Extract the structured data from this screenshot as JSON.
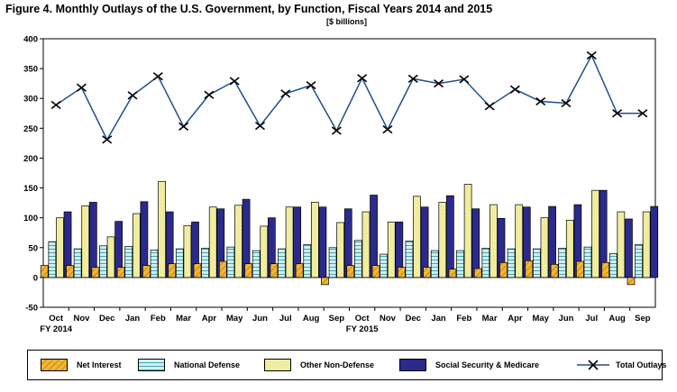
{
  "title": "Figure 4. Monthly Outlays of the U.S. Government, by Function,  Fiscal Years 2014 and 2015",
  "subtitle": "[$ billions]",
  "legend": {
    "net_interest": "Net Interest",
    "national_defense": "National Defense",
    "other_non_defense": "Other Non-Defense",
    "social_security_medicare": "Social Security & Medicare",
    "total_outlays": "Total Outlays"
  },
  "colors": {
    "net_interest": "#f2b632",
    "national_defense": "#cdeff2",
    "other_non_defense": "#f4f1a8",
    "social_security_medicare": "#2b2a8c",
    "total_outlays": "#1f4e8c"
  },
  "chart_data": {
    "type": "bar",
    "categories": [
      "Oct",
      "Nov",
      "Dec",
      "Jan",
      "Feb",
      "Mar",
      "Apr",
      "May",
      "Jun",
      "Jul",
      "Aug",
      "Sep",
      "Oct",
      "Nov",
      "Dec",
      "Jan",
      "Feb",
      "Mar",
      "Apr",
      "May",
      "Jun",
      "Jul",
      "Aug",
      "Sep"
    ],
    "fiscal_year_labels": [
      {
        "index": 0,
        "label": "FY 2014"
      },
      {
        "index": 12,
        "label": "FY 2015"
      }
    ],
    "ylim": [
      -50,
      400
    ],
    "yticks": [
      -50,
      0,
      50,
      100,
      150,
      200,
      250,
      300,
      350,
      400
    ],
    "grid": false,
    "legend_position": "bottom",
    "series": [
      {
        "name": "Net Interest",
        "kind": "bar",
        "values": [
          20,
          20,
          17,
          17,
          20,
          23,
          23,
          27,
          23,
          23,
          23,
          -12,
          20,
          20,
          17,
          17,
          14,
          15,
          25,
          28,
          22,
          27,
          25,
          -12
        ]
      },
      {
        "name": "National Defense",
        "kind": "bar",
        "values": [
          60,
          48,
          53,
          52,
          46,
          48,
          49,
          51,
          45,
          48,
          55,
          50,
          62,
          39,
          61,
          45,
          45,
          49,
          48,
          48,
          49,
          51,
          40,
          55
        ]
      },
      {
        "name": "Other Non-Defense",
        "kind": "bar",
        "values": [
          100,
          120,
          68,
          107,
          161,
          87,
          118,
          121,
          86,
          118,
          126,
          92,
          110,
          93,
          136,
          126,
          156,
          122,
          122,
          100,
          96,
          146,
          110,
          110
        ]
      },
      {
        "name": "Social Security & Medicare",
        "kind": "bar",
        "values": [
          110,
          126,
          94,
          127,
          110,
          93,
          115,
          131,
          100,
          118,
          118,
          115,
          138,
          93,
          118,
          137,
          115,
          99,
          118,
          119,
          122,
          146,
          98,
          119
        ]
      },
      {
        "name": "Total Outlays",
        "kind": "line",
        "values": [
          289,
          318,
          231,
          305,
          337,
          253,
          306,
          329,
          254,
          308,
          322,
          246,
          334,
          248,
          333,
          325,
          332,
          287,
          315,
          295,
          292,
          372,
          275,
          275
        ]
      }
    ]
  }
}
